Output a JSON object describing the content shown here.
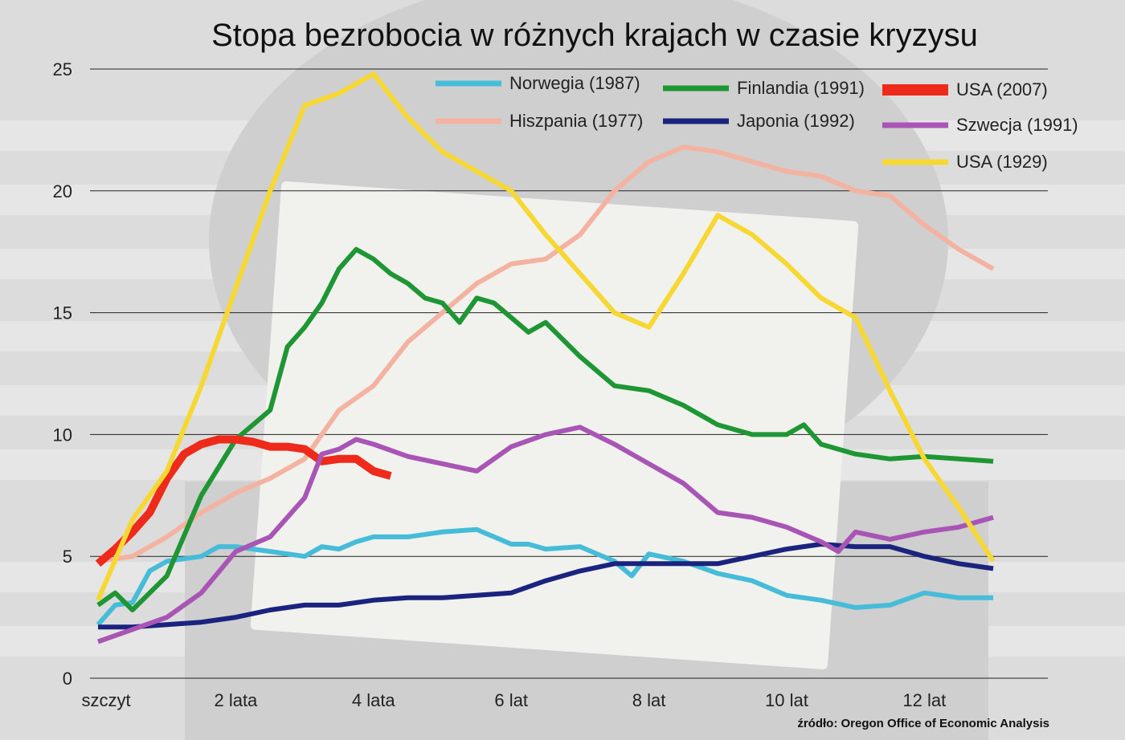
{
  "chart_data": {
    "type": "line",
    "title": "Stopa bezrobocia w różnych krajach w czasie kryzysu",
    "source": "źródło: Oregon Office of Economic Analysis",
    "xlabel": "",
    "ylabel": "",
    "xlim": [
      0,
      13
    ],
    "ylim": [
      0,
      25
    ],
    "yticks": [
      0,
      5,
      10,
      15,
      20,
      25
    ],
    "xticks": [
      {
        "value": 0,
        "label": "szczyt"
      },
      {
        "value": 2,
        "label": "2 lata"
      },
      {
        "value": 4,
        "label": "4 lata"
      },
      {
        "value": 6,
        "label": "6 lat"
      },
      {
        "value": 8,
        "label": "8 lat"
      },
      {
        "value": 10,
        "label": "10 lat"
      },
      {
        "value": 12,
        "label": "12 lat"
      }
    ],
    "grid": true,
    "legend": "top-right",
    "series": [
      {
        "name": "Norwegia (1987)",
        "color": "#46bcd9",
        "x": [
          0,
          0.25,
          0.5,
          0.75,
          1,
          1.25,
          1.5,
          1.75,
          2,
          2.5,
          3,
          3.25,
          3.5,
          3.75,
          4,
          4.5,
          5,
          5.5,
          6,
          6.25,
          6.5,
          7,
          7.5,
          7.75,
          8,
          8.5,
          9,
          9.5,
          10,
          10.5,
          11,
          11.5,
          12,
          12.5,
          13
        ],
        "values": [
          2.2,
          3.0,
          3.1,
          4.4,
          4.8,
          4.9,
          5.0,
          5.4,
          5.4,
          5.2,
          5.0,
          5.4,
          5.3,
          5.6,
          5.8,
          5.8,
          6.0,
          6.1,
          5.5,
          5.5,
          5.3,
          5.4,
          4.8,
          4.2,
          5.1,
          4.8,
          4.3,
          4.0,
          3.4,
          3.2,
          2.9,
          3.0,
          3.5,
          3.3,
          3.3
        ]
      },
      {
        "name": "Hiszpania (1977)",
        "color": "#f3b3a0",
        "x": [
          0,
          0.25,
          0.5,
          0.75,
          1,
          1.5,
          2,
          2.5,
          3,
          3.5,
          4,
          4.5,
          5,
          5.5,
          6,
          6.5,
          7,
          7.5,
          8,
          8.5,
          9,
          9.5,
          10,
          10.5,
          11,
          11.5,
          12,
          12.5,
          13
        ],
        "values": [
          4.8,
          4.9,
          5.0,
          5.4,
          5.8,
          6.8,
          7.6,
          8.2,
          9.0,
          11.0,
          12.0,
          13.8,
          15.0,
          16.2,
          17.0,
          17.2,
          18.2,
          20.0,
          21.2,
          21.8,
          21.6,
          21.2,
          20.8,
          20.6,
          20.0,
          19.8,
          18.6,
          17.6,
          16.8
        ]
      },
      {
        "name": "Finlandia (1991)",
        "color": "#1e9633",
        "x": [
          0,
          0.25,
          0.5,
          0.75,
          1,
          1.5,
          2,
          2.5,
          2.75,
          3,
          3.25,
          3.5,
          3.75,
          4,
          4.25,
          4.5,
          4.75,
          5,
          5.25,
          5.5,
          5.75,
          6,
          6.25,
          6.5,
          7,
          7.5,
          8,
          8.5,
          9,
          9.5,
          10,
          10.25,
          10.5,
          11,
          11.5,
          12,
          12.5,
          13
        ],
        "values": [
          3.0,
          3.5,
          2.8,
          3.5,
          4.2,
          7.5,
          9.8,
          11.0,
          13.6,
          14.4,
          15.4,
          16.8,
          17.6,
          17.2,
          16.6,
          16.2,
          15.6,
          15.4,
          14.6,
          15.6,
          15.4,
          14.8,
          14.2,
          14.6,
          13.2,
          12.0,
          11.8,
          11.2,
          10.4,
          10.0,
          10.0,
          10.4,
          9.6,
          9.2,
          9.0,
          9.1,
          9.0,
          8.9
        ]
      },
      {
        "name": "Japonia (1992)",
        "color": "#1a237e",
        "x": [
          0,
          0.5,
          1,
          1.5,
          2,
          2.5,
          3,
          3.5,
          4,
          4.5,
          5,
          5.5,
          6,
          6.5,
          7,
          7.5,
          8,
          8.5,
          9,
          9.5,
          10,
          10.5,
          11,
          11.5,
          12,
          12.5,
          13
        ],
        "values": [
          2.1,
          2.1,
          2.2,
          2.3,
          2.5,
          2.8,
          3.0,
          3.0,
          3.2,
          3.3,
          3.3,
          3.4,
          3.5,
          4.0,
          4.4,
          4.7,
          4.7,
          4.7,
          4.7,
          5.0,
          5.3,
          5.5,
          5.4,
          5.4,
          5.0,
          4.7,
          4.5
        ]
      },
      {
        "name": "USA (2007)",
        "color": "#ee2a1b",
        "x": [
          0,
          0.25,
          0.5,
          0.75,
          1,
          1.25,
          1.5,
          1.75,
          2,
          2.25,
          2.5,
          2.75,
          3,
          3.25,
          3.5,
          3.75,
          4,
          4.25
        ],
        "values": [
          4.7,
          5.3,
          6.0,
          6.8,
          8.2,
          9.2,
          9.6,
          9.8,
          9.8,
          9.7,
          9.5,
          9.5,
          9.4,
          8.9,
          9.0,
          9.0,
          8.5,
          8.3
        ]
      },
      {
        "name": "Szwecja (1991)",
        "color": "#a855b5",
        "x": [
          0,
          0.5,
          1,
          1.5,
          2,
          2.5,
          3,
          3.25,
          3.5,
          3.75,
          4,
          4.5,
          5,
          5.5,
          6,
          6.5,
          7,
          7.5,
          8,
          8.5,
          9,
          9.5,
          10,
          10.5,
          10.75,
          11,
          11.5,
          12,
          12.5,
          13
        ],
        "values": [
          1.5,
          2.0,
          2.5,
          3.5,
          5.2,
          5.8,
          7.4,
          9.2,
          9.4,
          9.8,
          9.6,
          9.1,
          8.8,
          8.5,
          9.5,
          10.0,
          10.3,
          9.6,
          8.8,
          8.0,
          6.8,
          6.6,
          6.2,
          5.6,
          5.2,
          6.0,
          5.7,
          6.0,
          6.2,
          6.6
        ]
      },
      {
        "name": "USA (1929)",
        "color": "#f7d832",
        "x": [
          0,
          0.5,
          1,
          1.5,
          2,
          2.5,
          3,
          3.5,
          4,
          4.5,
          5,
          5.5,
          6,
          6.5,
          7,
          7.5,
          8,
          8.5,
          9,
          9.5,
          10,
          10.5,
          11,
          11.5,
          12,
          12.5,
          13
        ],
        "values": [
          3.2,
          6.5,
          8.5,
          12.0,
          16.0,
          20.0,
          23.5,
          24.0,
          24.8,
          23.0,
          21.6,
          20.8,
          20.0,
          18.2,
          16.6,
          15.0,
          14.4,
          16.6,
          19.0,
          18.2,
          17.0,
          15.6,
          14.8,
          11.8,
          9.0,
          7.0,
          4.8
        ]
      }
    ]
  }
}
